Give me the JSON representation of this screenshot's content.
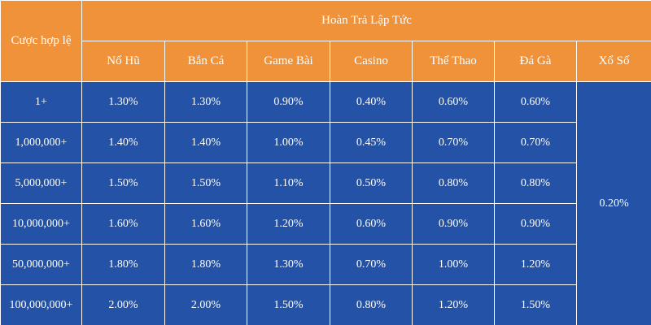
{
  "table": {
    "corner": "Cược hợp lệ",
    "group_title": "Hoàn Trả Lập Tức",
    "columns": [
      "Nổ Hũ",
      "Bắn Cá",
      "Game Bài",
      "Casino",
      "Thể Thao",
      "Đá Gà",
      "Xổ Số"
    ],
    "rows": [
      {
        "label": "1+",
        "values": [
          "1.30%",
          "1.30%",
          "0.90%",
          "0.40%",
          "0.60%",
          "0.60%"
        ]
      },
      {
        "label": "1,000,000+",
        "values": [
          "1.40%",
          "1.40%",
          "1.00%",
          "0.45%",
          "0.70%",
          "0.70%"
        ]
      },
      {
        "label": "5,000,000+",
        "values": [
          "1.50%",
          "1.50%",
          "1.10%",
          "0.50%",
          "0.80%",
          "0.80%"
        ]
      },
      {
        "label": "10,000,000+",
        "values": [
          "1.60%",
          "1.60%",
          "1.20%",
          "0.60%",
          "0.90%",
          "0.90%"
        ]
      },
      {
        "label": "50,000,000+",
        "values": [
          "1.80%",
          "1.80%",
          "1.30%",
          "0.70%",
          "1.00%",
          "1.20%"
        ]
      },
      {
        "label": "100,000,000+",
        "values": [
          "2.00%",
          "2.00%",
          "1.50%",
          "0.80%",
          "1.20%",
          "1.50%"
        ]
      }
    ],
    "merged_value": "0.20%"
  }
}
